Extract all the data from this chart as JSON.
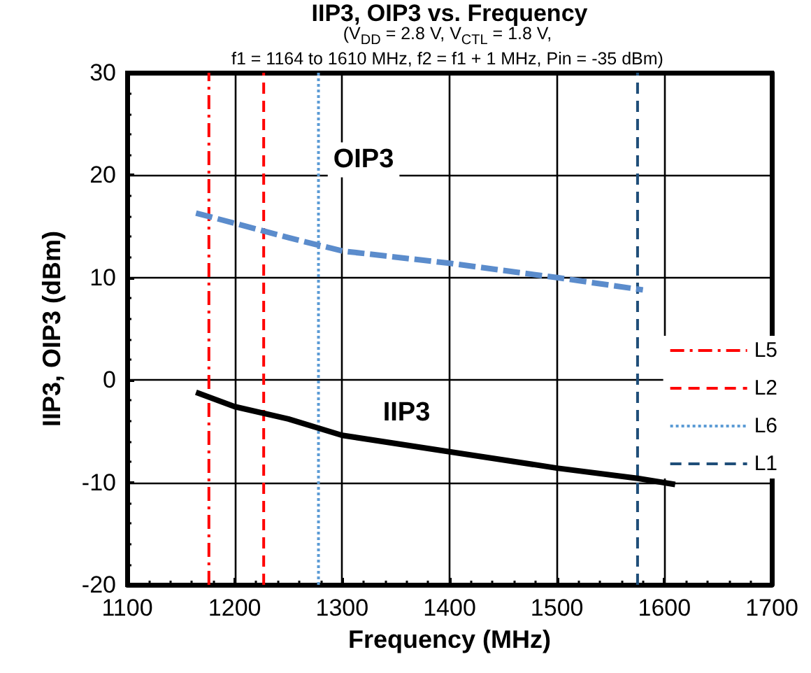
{
  "chart_data": {
    "type": "line",
    "title": "IIP3, OIP3 vs. Frequency",
    "subtitle": "(V$_{DD}$ = 2.8 V, V$_{CTL}$ = 1.8 V,\nf1 = 1164 to 1610 MHz, f2 = f1 + 1 MHz, Pin = -35 dBm)",
    "xlabel": "Frequency (MHz)",
    "ylabel": "IIP3, OIP3 (dBm)",
    "xlim": [
      1100,
      1700
    ],
    "xticks": [
      1100,
      1200,
      1300,
      1400,
      1500,
      1600,
      1700
    ],
    "ylim": [
      -20,
      30
    ],
    "yticks": [
      -20,
      -10,
      0,
      10,
      20,
      30
    ],
    "grid": true,
    "legend": "right",
    "marker": "none",
    "series": [
      {
        "color": "#5b8ccc",
        "line_style": "dashed",
        "x": [
          1164,
          1200,
          1250,
          1300,
          1400,
          1500,
          1580
        ],
        "values": [
          16.3,
          15.3,
          13.9,
          12.6,
          11.4,
          10.0,
          8.8
        ]
      },
      {
        "color": "#000000",
        "line_style": "solid",
        "x": [
          1164,
          1200,
          1250,
          1300,
          1400,
          1500,
          1575,
          1610
        ],
        "values": [
          -1.2,
          -2.6,
          -3.8,
          -5.4,
          -7.0,
          -8.6,
          -9.6,
          -10.2
        ]
      },
      {
        "name": "L5",
        "color": "#ff0000",
        "line_style": "dashdot",
        "x": [
          1176,
          1176
        ],
        "values": [
          -20,
          30
        ]
      },
      {
        "name": "L2",
        "color": "#ff0000",
        "line_style": "dashed",
        "x": [
          1227,
          1227
        ],
        "values": [
          -20,
          30
        ]
      },
      {
        "name": "L6",
        "color": "#5b9bd5",
        "line_style": "dotted",
        "x": [
          1278,
          1278
        ],
        "values": [
          -20,
          30
        ]
      },
      {
        "name": "L1",
        "color": "#1f4e79",
        "line_style": "dashed",
        "x": [
          1575,
          1575
        ],
        "values": [
          -20,
          30
        ]
      }
    ],
    "annotations": [
      "OIP3",
      "IIP3"
    ]
  }
}
